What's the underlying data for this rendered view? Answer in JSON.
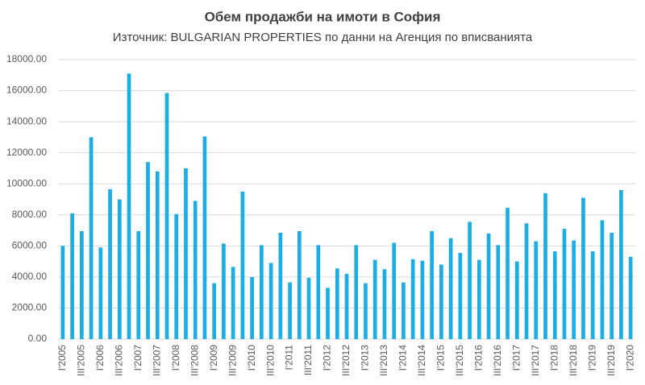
{
  "chart_data": {
    "type": "bar",
    "title": "Обем продажби на имоти в София",
    "subtitle": "Източник: BULGARIAN PROPERTIES по данни на Агенция по вписванията",
    "categories": [
      "I'2005",
      null,
      "III'2005",
      null,
      "I'2006",
      null,
      "III'2006",
      null,
      "I'2007",
      null,
      "III'2007",
      null,
      "I'2008",
      null,
      "III'2008",
      null,
      "I'2009",
      null,
      "III'2009",
      null,
      "I'2010",
      null,
      "III'2010",
      null,
      "I'2011",
      null,
      "III'2011",
      null,
      "I'2012",
      null,
      "III'2012",
      null,
      "I'2013",
      null,
      "III'2013",
      null,
      "I'2014",
      null,
      "III'2014",
      null,
      "I'2015",
      null,
      "III'2015",
      null,
      "I'2016",
      null,
      "III'2016",
      null,
      "I'2017",
      null,
      "III'2017",
      null,
      "I'2018",
      null,
      "III'2018",
      null,
      "I'2019",
      null,
      "III'2019",
      null,
      "I'2020"
    ],
    "values": [
      6000,
      8100,
      6950,
      13000,
      5900,
      9650,
      9000,
      17100,
      6950,
      11400,
      10800,
      15850,
      8050,
      11000,
      8900,
      13050,
      3600,
      6150,
      4650,
      9500,
      4000,
      6050,
      4900,
      6850,
      3650,
      6950,
      3950,
      6050,
      3300,
      4550,
      4200,
      6050,
      3600,
      5100,
      4500,
      6200,
      3650,
      5150,
      5050,
      6950,
      4800,
      6500,
      5550,
      7550,
      5100,
      6800,
      6050,
      8450,
      5000,
      7450,
      6300,
      9400,
      5650,
      7100,
      6350,
      9100,
      5650,
      7650,
      6850,
      9600,
      5300
    ],
    "color": "#1aaee5",
    "ylim": [
      0,
      18000
    ],
    "yticks": [
      {
        "value": 0,
        "label": "0.00"
      },
      {
        "value": 2000,
        "label": "2000.00"
      },
      {
        "value": 4000,
        "label": "4000.00"
      },
      {
        "value": 6000,
        "label": "6000.00"
      },
      {
        "value": 8000,
        "label": "8000.00"
      },
      {
        "value": 10000,
        "label": "10000.00"
      },
      {
        "value": 12000,
        "label": "12000.00"
      },
      {
        "value": 14000,
        "label": "14000.00"
      },
      {
        "value": 16000,
        "label": "16000.00"
      },
      {
        "value": 18000,
        "label": "18000.00"
      }
    ],
    "grid": true
  }
}
